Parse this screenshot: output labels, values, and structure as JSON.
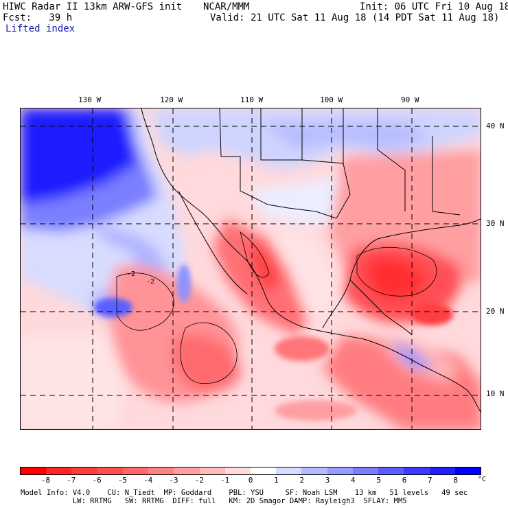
{
  "header": {
    "line1_left": "HIWC Radar II 13km ARW-GFS init",
    "line1_center": "NCAR/MMM",
    "line1_right": "Init: 06 UTC Fri 10 Aug 18",
    "line2_left": "Fcst:   39 h",
    "line2_right": "Valid: 21 UTC Sat 11 Aug 18 (14 PDT Sat 11 Aug 18)",
    "field_name": "Lifted index"
  },
  "map": {
    "lon_labels": [
      "130 W",
      "120 W",
      "110 W",
      "100 W",
      "90 W"
    ],
    "lat_labels": [
      "40 N",
      "30 N",
      "20 N",
      "10 N"
    ],
    "contour_labels": [
      "-2",
      "-2"
    ]
  },
  "colorbar": {
    "ticks": [
      "-8",
      "-7",
      "-6",
      "-5",
      "-4",
      "-3",
      "-2",
      "-1",
      "0",
      "1",
      "2",
      "3",
      "4",
      "5",
      "6",
      "7",
      "8"
    ],
    "unit": "°C",
    "colors": [
      "#ff0000",
      "#ff2424",
      "#ff3c3c",
      "#ff5050",
      "#ff6969",
      "#ff8181",
      "#ff9f9f",
      "#ffbcbc",
      "#ffdcdc",
      "#ffffff",
      "#d6dcff",
      "#b4bcff",
      "#969cff",
      "#7a7eff",
      "#5c5cff",
      "#3c3cff",
      "#2020ff",
      "#0000ff"
    ]
  },
  "footer": {
    "line1": "Model Info: V4.0    CU: N_Tiedt  MP: Goddard    PBL: YSU     SF: Noah LSM    13 km   51 levels   49 sec",
    "line2": "            LW: RRTMG   SW: RRTMG  DIFF: full   KM: 2D Smagor DAMP: Rayleigh3  SFLAY: MM5"
  }
}
